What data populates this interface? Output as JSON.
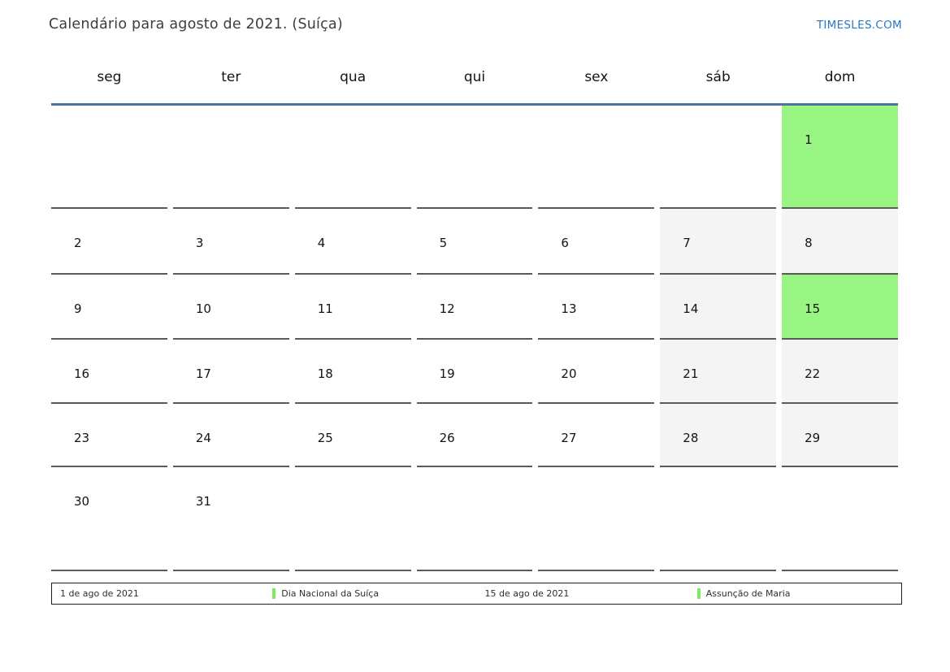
{
  "header": {
    "title": "Calendário para agosto de 2021. (Suíça)",
    "site_link": "TIMESLES.COM"
  },
  "calendar": {
    "weekdays": [
      "seg",
      "ter",
      "qua",
      "qui",
      "sex",
      "sáb",
      "dom"
    ],
    "weeks": [
      [
        "",
        "",
        "",
        "",
        "",
        "",
        "1"
      ],
      [
        "2",
        "3",
        "4",
        "5",
        "6",
        "7",
        "8"
      ],
      [
        "9",
        "10",
        "11",
        "12",
        "13",
        "14",
        "15"
      ],
      [
        "16",
        "17",
        "18",
        "19",
        "20",
        "21",
        "22"
      ],
      [
        "23",
        "24",
        "25",
        "26",
        "27",
        "28",
        "29"
      ],
      [
        "30",
        "31",
        "",
        "",
        "",
        "",
        ""
      ]
    ],
    "holiday_days": [
      "1",
      "15"
    ],
    "weekend_days": [
      "7",
      "8",
      "14",
      "21",
      "22",
      "28",
      "29"
    ]
  },
  "legend": {
    "entries": [
      {
        "date": "1 de ago de 2021",
        "name": "Dia Nacional da Suíça"
      },
      {
        "date": "15 de ago de 2021",
        "name": "Assunção de Maria"
      }
    ]
  },
  "colors": {
    "holiday_cell": "#98f582",
    "weekend_cell": "#f4f4f4",
    "grid_line": "#5a5a5a",
    "header_line": "#4f739b",
    "link": "#2878c4",
    "legend_marker": "#7dea60"
  }
}
